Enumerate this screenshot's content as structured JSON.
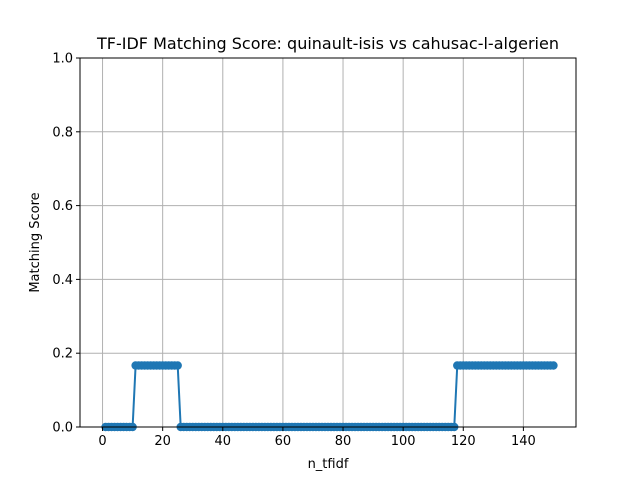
{
  "chart_data": {
    "type": "line",
    "title": "TF-IDF Matching Score: quinault-isis vs cahusac-l-algerien",
    "xlabel": "n_tfidf",
    "ylabel": "Matching Score",
    "xlim": [
      -7.5,
      157.5
    ],
    "ylim": [
      0,
      1.0
    ],
    "xticks": [
      0,
      20,
      40,
      60,
      80,
      100,
      120,
      140
    ],
    "yticks": [
      0.0,
      0.2,
      0.4,
      0.6,
      0.8,
      1.0
    ],
    "ytick_labels": [
      "0.0",
      "0.2",
      "0.4",
      "0.6",
      "0.8",
      "1.0"
    ],
    "grid": true,
    "series": [
      {
        "color": "#1f77b4",
        "marker": "circle",
        "segments": [
          {
            "x_start": 1,
            "x_end": 10,
            "y": 0.0
          },
          {
            "x_start": 11,
            "x_end": 25,
            "y": 0.1667
          },
          {
            "x_start": 26,
            "x_end": 117,
            "y": 0.0
          },
          {
            "x_start": 118,
            "x_end": 150,
            "y": 0.1667
          }
        ]
      }
    ]
  }
}
